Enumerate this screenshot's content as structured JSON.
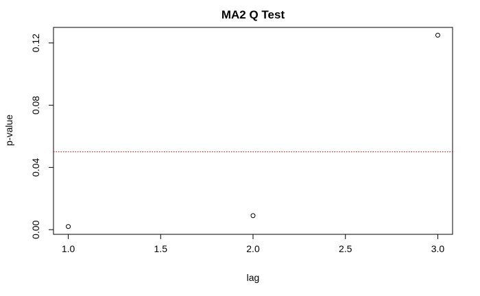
{
  "chart_data": {
    "type": "scatter",
    "title": "MA2 Q Test",
    "xlabel": "lag",
    "ylabel": "p-value",
    "x": [
      1.0,
      2.0,
      3.0
    ],
    "y": [
      0.002,
      0.009,
      0.125
    ],
    "xlim": [
      0.92,
      3.08
    ],
    "ylim": [
      -0.003,
      0.13
    ],
    "xticks": [
      1.0,
      1.5,
      2.0,
      2.5,
      3.0
    ],
    "xtick_labels": [
      "1.0",
      "1.5",
      "2.0",
      "2.5",
      "3.0"
    ],
    "yticks": [
      0.0,
      0.04,
      0.08,
      0.12
    ],
    "ytick_labels": [
      "0.00",
      "0.04",
      "0.08",
      "0.12"
    ],
    "grid": false,
    "reference_line": {
      "y": 0.05,
      "color": "#cc0000",
      "style": "dotted"
    },
    "point_marker": "open-circle",
    "colors": {
      "axis": "#000000",
      "points": "#000000",
      "reference": "#cc0000",
      "background": "#ffffff"
    }
  }
}
